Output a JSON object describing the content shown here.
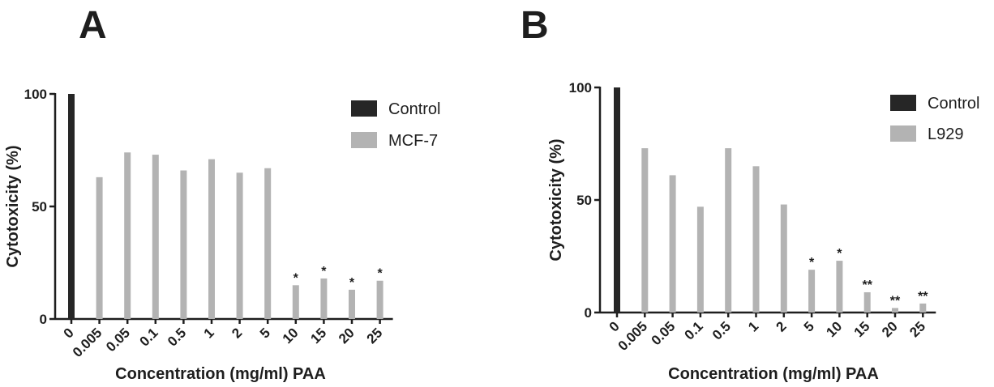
{
  "colors": {
    "control": "#262626",
    "sample": "#b3b3b3",
    "axis": "#1e1e1e"
  },
  "chart_data": [
    {
      "panel": "A",
      "type": "bar",
      "categories": [
        "0",
        "0.005",
        "0.05",
        "0.1",
        "0.5",
        "1",
        "2",
        "5",
        "10",
        "15",
        "20",
        "25"
      ],
      "values": [
        100,
        63,
        74,
        73,
        66,
        71,
        65,
        67,
        15,
        18,
        13,
        17
      ],
      "groups": [
        "Control",
        "MCF-7",
        "MCF-7",
        "MCF-7",
        "MCF-7",
        "MCF-7",
        "MCF-7",
        "MCF-7",
        "MCF-7",
        "MCF-7",
        "MCF-7",
        "MCF-7"
      ],
      "significance": [
        "",
        "",
        "",
        "",
        "",
        "",
        "",
        "",
        "*",
        "*",
        "*",
        "*"
      ],
      "xlabel": "Concentration (mg/ml) PAA",
      "ylabel": "Cytotoxicity (%)",
      "ylim": [
        0,
        100
      ],
      "yticks": [
        "0",
        "50",
        "100"
      ],
      "legend": [
        "Control",
        "MCF-7"
      ]
    },
    {
      "panel": "B",
      "type": "bar",
      "categories": [
        "0",
        "0.005",
        "0.05",
        "0.1",
        "0.5",
        "1",
        "2",
        "5",
        "10",
        "15",
        "20",
        "25"
      ],
      "values": [
        100,
        73,
        61,
        47,
        73,
        65,
        48,
        19,
        23,
        9,
        2,
        4
      ],
      "groups": [
        "Control",
        "L929",
        "L929",
        "L929",
        "L929",
        "L929",
        "L929",
        "L929",
        "L929",
        "L929",
        "L929",
        "L929"
      ],
      "significance": [
        "",
        "",
        "",
        "",
        "",
        "",
        "",
        "*",
        "*",
        "**",
        "**",
        "**"
      ],
      "xlabel": "Concentration (mg/ml) PAA",
      "ylabel": "Cytotoxicity (%)",
      "ylim": [
        0,
        100
      ],
      "yticks": [
        "0",
        "50",
        "100"
      ],
      "legend": [
        "Control",
        "L929"
      ]
    }
  ]
}
